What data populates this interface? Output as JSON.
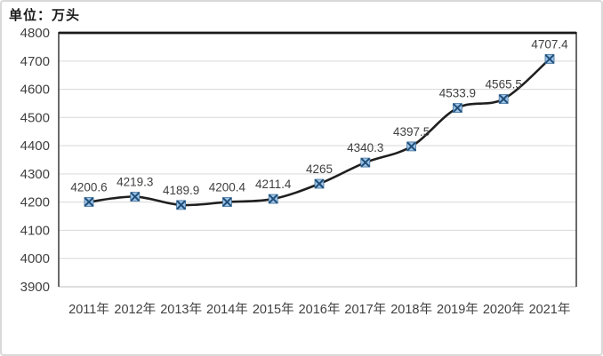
{
  "unit_label": "单位：万头",
  "colors": {
    "line": "#1f1f1f",
    "marker_fill": "#9dc3e6",
    "marker_stroke": "#1f4e79",
    "marker_edge": "#41719c",
    "gridline": "#dcdcdc",
    "plot_border": "#1a1a1a",
    "axis_bottom": "#c9c9c9",
    "tick_label": "#404040",
    "data_label": "#3f3f3f",
    "frame_border": "#d9d9d9",
    "background": "#ffffff"
  },
  "chart_data": {
    "type": "line",
    "title": "",
    "xlabel": "",
    "ylabel": "单位：万头",
    "categories": [
      "2011年",
      "2012年",
      "2013年",
      "2014年",
      "2015年",
      "2016年",
      "2017年",
      "2018年",
      "2019年",
      "2020年",
      "2021年"
    ],
    "values": [
      4200.6,
      4219.3,
      4189.9,
      4200.4,
      4211.4,
      4265,
      4340.3,
      4397.5,
      4533.9,
      4565.5,
      4707.4
    ],
    "point_labels": [
      "4200.6",
      "4219.3",
      "4189.9",
      "4200.4",
      "4211.4",
      "4265",
      "4340.3",
      "4397.5",
      "4533.9",
      "4565.5",
      "4707.4"
    ],
    "ylim": [
      3900,
      4800
    ],
    "ytick_step": 100,
    "grid": true,
    "legend": false,
    "marker": "x-square",
    "line_smooth": true
  }
}
